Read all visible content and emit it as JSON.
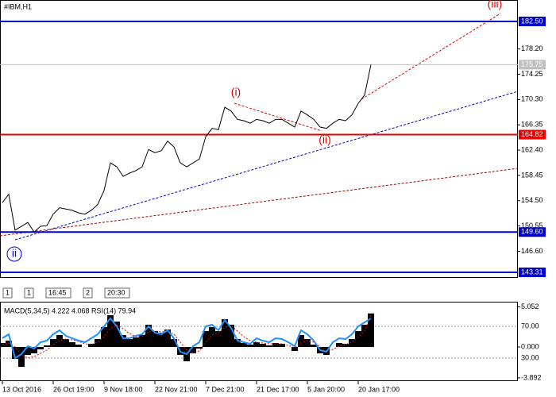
{
  "chart_data": [
    {
      "type": "line",
      "title": "#IBM,H1",
      "categories": [
        "13 Oct 2016",
        null,
        null,
        null,
        null,
        null,
        null,
        null,
        "26 Oct 19:00",
        null,
        null,
        null,
        null,
        null,
        null,
        null,
        "9 Nov 18:00",
        null,
        null,
        null,
        null,
        null,
        null,
        null,
        "22 Nov 21:00",
        null,
        null,
        null,
        null,
        null,
        null,
        null,
        "7 Dec 21:00",
        null,
        null,
        null,
        null,
        null,
        null,
        null,
        "21 Dec 17:00",
        null,
        null,
        null,
        null,
        null,
        null,
        null,
        "5 Jan 20:00",
        null,
        null,
        null,
        null,
        null,
        null,
        null,
        "20 Jan 17:00",
        null,
        null
      ],
      "series": [
        {
          "color": "#000000",
          "values": [
            154.2,
            155.5,
            149.9,
            150.5,
            151.1,
            149.6,
            150.5,
            150.6,
            152.4,
            153.4,
            153.2,
            153.0,
            152.6,
            152.4,
            153.0,
            153.9,
            156.1,
            160.4,
            159.8,
            158.3,
            158.8,
            159.2,
            159.8,
            162.5,
            162.0,
            162.3,
            163.8,
            162.9,
            160.4,
            159.8,
            160.4,
            161.0,
            164.5,
            165.8,
            165.6,
            169.1,
            168.5,
            167.2,
            167.0,
            166.6,
            167.2,
            167.0,
            166.6,
            167.2,
            167.2,
            166.6,
            166.0,
            168.5,
            167.9,
            167.2,
            166.0,
            165.8,
            166.6,
            167.2,
            167.0,
            167.9,
            169.7,
            171.0,
            175.75
          ]
        }
      ],
      "ylim": [
        142.44,
        185.85
      ],
      "yticks": [
        {
          "value": 178.2,
          "label": "178.20"
        },
        174.25,
        {
          "value": 170.3,
          "label": "170.30"
        },
        166.35,
        {
          "value": 162.4,
          "label": "162.40"
        },
        158.45,
        {
          "value": 154.5,
          "label": "154.50"
        },
        150.55,
        {
          "value": 146.6,
          "label": "146.60"
        }
      ],
      "levels": [
        {
          "value": 182.5,
          "label": "182.50",
          "color": "#0000cc"
        },
        {
          "value": 164.82,
          "color": "#e60000"
        },
        {
          "value": 149.6,
          "label": "149.60",
          "color": "#0000cc"
        },
        {
          "value": 143.31,
          "color": "#0000cc"
        }
      ],
      "price_label": {
        "value": 175.75,
        "label": "175.75"
      },
      "annotations": [
        "(i)",
        "(ii)",
        "(iii)",
        "ii"
      ],
      "toolbar": [
        "1",
        "1",
        "16:45",
        "2",
        "20:30"
      ]
    },
    {
      "type": "macd",
      "title": "MACD(5,34,5) 4.222 4.068 RSI(14) 79.94",
      "series": [
        {
          "color": "#000000",
          "values": [
            0.5,
            0.8,
            -1.5,
            -2.5,
            -1.0,
            -0.8,
            -0.3,
            0.2,
            1.0,
            1.5,
            1.0,
            0.6,
            0.3,
            0.0,
            0.4,
            1.0,
            2.5,
            4.0,
            3.2,
            1.5,
            1.0,
            1.2,
            1.5,
            2.8,
            2.0,
            1.8,
            2.2,
            1.0,
            -1.0,
            -1.8,
            -0.8,
            -0.2,
            2.0,
            2.5,
            2.0,
            3.5,
            2.8,
            1.0,
            0.5,
            0.3,
            0.6,
            0.4,
            0.2,
            0.5,
            0.4,
            0.0,
            -0.5,
            1.5,
            1.0,
            0.3,
            -0.8,
            -1.0,
            0.0,
            0.5,
            0.4,
            1.0,
            2.0,
            2.8,
            4.222
          ]
        },
        {
          "color": "#e60000",
          "values": [
            0.3,
            0.5,
            0.0,
            -1.0,
            -1.4,
            -1.2,
            -0.8,
            -0.4,
            0.3,
            0.8,
            1.0,
            0.9,
            0.7,
            0.4,
            0.3,
            0.6,
            1.3,
            2.3,
            2.8,
            2.3,
            1.7,
            1.3,
            1.3,
            1.9,
            2.0,
            1.9,
            2.0,
            1.6,
            0.6,
            -0.4,
            -0.7,
            -0.5,
            0.6,
            1.5,
            1.8,
            2.5,
            2.7,
            2.0,
            1.3,
            0.8,
            0.6,
            0.5,
            0.4,
            0.4,
            0.4,
            0.2,
            -0.1,
            0.5,
            0.8,
            0.6,
            0.0,
            -0.5,
            -0.3,
            0.1,
            0.3,
            0.6,
            1.2,
            2.0,
            4.068
          ]
        },
        {
          "color": "#1e90ff",
          "axis": "y2",
          "values": [
            55,
            60,
            30,
            35,
            45,
            42,
            50,
            52,
            60,
            65,
            58,
            55,
            52,
            50,
            55,
            60,
            70,
            80,
            70,
            55,
            55,
            58,
            60,
            70,
            62,
            60,
            65,
            55,
            38,
            35,
            45,
            50,
            70,
            72,
            65,
            78,
            68,
            52,
            50,
            48,
            55,
            52,
            50,
            55,
            54,
            50,
            45,
            65,
            60,
            52,
            40,
            38,
            50,
            55,
            54,
            60,
            70,
            75,
            79.94
          ]
        }
      ],
      "ylim": [
        -4.4,
        5.6
      ],
      "yticks": [
        {
          "value": 5.052,
          "label": "5.052"
        },
        {
          "value": 0,
          "label": "0.000"
        },
        {
          "value": -3.892,
          "label": "-3.892"
        }
      ],
      "y2lim": [
        0,
        100
      ],
      "y2ticks": [
        {
          "value": 70,
          "label": "70.00"
        },
        {
          "value": 30,
          "label": "30.00"
        }
      ]
    }
  ]
}
